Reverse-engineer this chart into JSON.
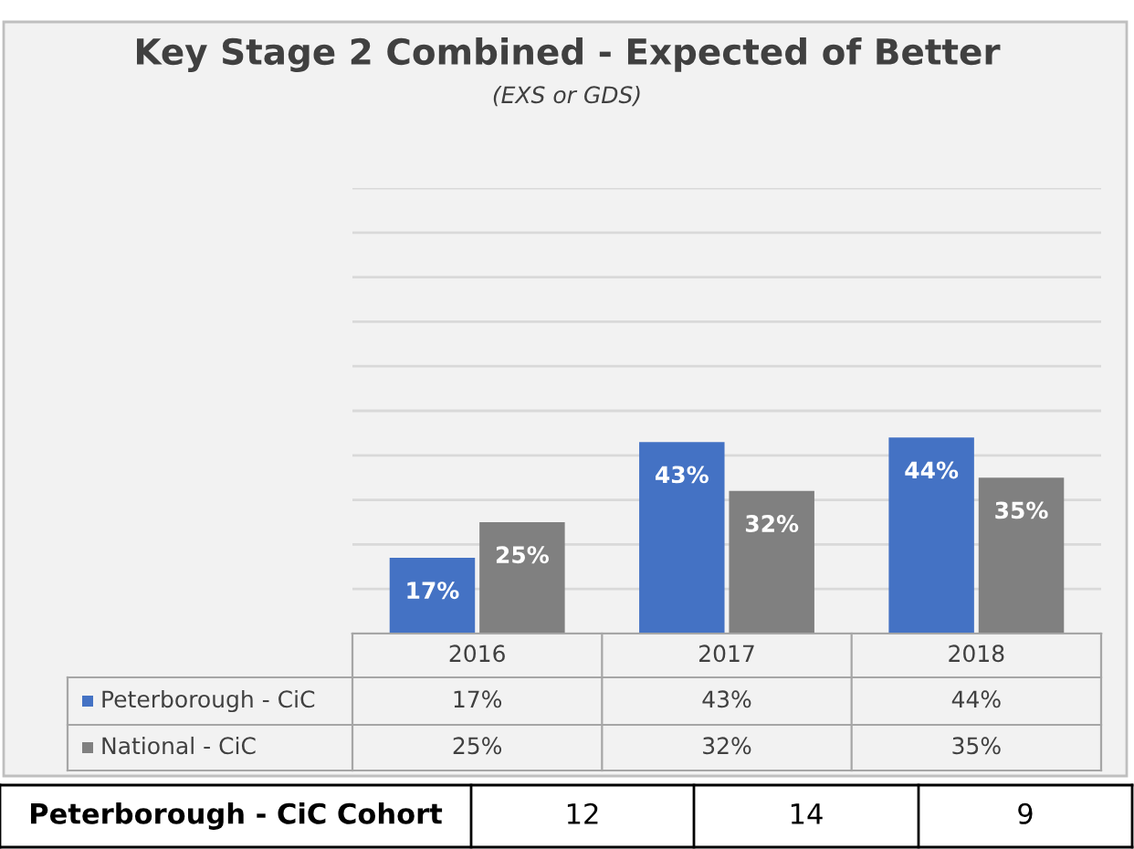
{
  "chart_data": {
    "type": "bar",
    "title": "Key Stage 2 Combined - Expected of Better",
    "subtitle": "(EXS or GDS)",
    "categories": [
      "2016",
      "2017",
      "2018"
    ],
    "series": [
      {
        "name": "Peterborough - CiC",
        "color": "#4472c4",
        "values": [
          17,
          43,
          44
        ],
        "value_labels": [
          "17%",
          "43%",
          "44%"
        ]
      },
      {
        "name": "National - CiC",
        "color": "#808080",
        "values": [
          25,
          32,
          35
        ],
        "value_labels": [
          "25%",
          "32%",
          "35%"
        ]
      }
    ],
    "ylim": [
      0,
      100
    ],
    "yticks": [
      {
        "value": 0,
        "label": null
      },
      {
        "value": 10,
        "label": null
      },
      {
        "value": 20,
        "label": null
      },
      {
        "value": 30,
        "label": null
      },
      {
        "value": 40,
        "label": null
      },
      {
        "value": 50,
        "label": null
      },
      {
        "value": 60,
        "label": null
      },
      {
        "value": 70,
        "label": null
      },
      {
        "value": 80,
        "label": null
      },
      {
        "value": 90,
        "label": null
      },
      {
        "value": 100,
        "label": null
      }
    ],
    "grid": "y",
    "legend": "bottom",
    "tick_labels": false,
    "annotations": [
      "Peterborough - CiC Cohort",
      "12",
      "14",
      "9"
    ]
  }
}
